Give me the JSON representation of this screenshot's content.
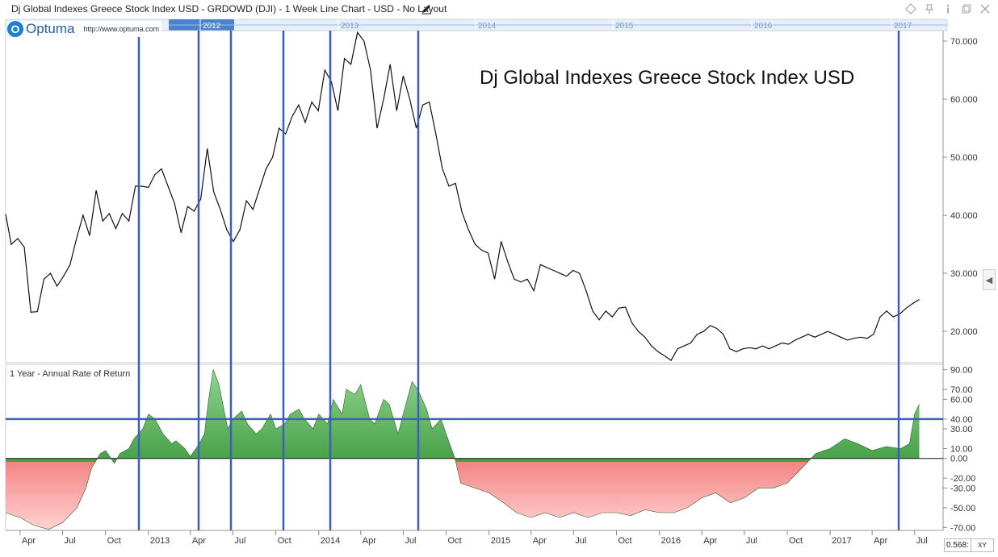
{
  "window": {
    "title": "Dj Global Indexes Greece Stock Index USD - GRDOWD (DJI) - 1 Week Line Chart - USD - No Layout",
    "icons": [
      "diamond-icon",
      "pin-icon",
      "info-icon",
      "restore-icon",
      "close-icon"
    ]
  },
  "logo": {
    "mark": "O",
    "brand": "Optuma",
    "url": "http://www.optuma.com"
  },
  "navigator": {
    "years": [
      "2012",
      "2013",
      "2014",
      "2015",
      "2016",
      "2017"
    ]
  },
  "panel_label": "1 Year - Annual Rate of Return",
  "footer": {
    "zoom": "0.568:",
    "xy_label": "XY"
  },
  "colors": {
    "price_line": "#111111",
    "vline": "#3b5fc0",
    "positive": "#1e8a1e",
    "negative": "#e53030"
  },
  "chart_data": [
    {
      "type": "line",
      "title": "Dj Global Indexes Greece Stock Index USD",
      "x_tick_labels": [
        "Apr",
        "Jul",
        "Oct",
        "2013",
        "Apr",
        "Jul",
        "Oct",
        "2014",
        "Apr",
        "Jul",
        "Oct",
        "2015",
        "Apr",
        "Jul",
        "Oct",
        "2016",
        "Apr",
        "Jul",
        "Oct",
        "2017",
        "Apr",
        "Jul"
      ],
      "y_tick_labels": [
        "20.000",
        "30.000",
        "40.000",
        "50.000",
        "60.000",
        "70.000"
      ],
      "y_ticks": [
        20,
        30,
        40,
        50,
        60,
        70
      ],
      "ylim": [
        14.6,
        71.8
      ],
      "xlim": [
        "2012-03-01",
        "2017-08-31"
      ],
      "grid": false,
      "series": [
        {
          "x": [
            "2012-03-01",
            "2012-03-13",
            "2012-03-27",
            "2012-04-10",
            "2012-04-24",
            "2012-05-08",
            "2012-05-22",
            "2012-06-05",
            "2012-06-19",
            "2012-07-03",
            "2012-07-17",
            "2012-07-31",
            "2012-08-14",
            "2012-08-28",
            "2012-09-11",
            "2012-09-25",
            "2012-10-09",
            "2012-10-23",
            "2012-11-06",
            "2012-11-20",
            "2012-12-04",
            "2012-12-18",
            "2013-01-01",
            "2013-01-15",
            "2013-01-29",
            "2013-02-12",
            "2013-02-26",
            "2013-03-12",
            "2013-03-26",
            "2013-04-09",
            "2013-04-23",
            "2013-05-07",
            "2013-05-21",
            "2013-06-04",
            "2013-06-18",
            "2013-07-02",
            "2013-07-16",
            "2013-07-30",
            "2013-08-13",
            "2013-08-27",
            "2013-09-10",
            "2013-09-24",
            "2013-10-08",
            "2013-10-22",
            "2013-11-05",
            "2013-11-19",
            "2013-12-03",
            "2013-12-17",
            "2013-12-31",
            "2014-01-14",
            "2014-01-28",
            "2014-02-11",
            "2014-02-25",
            "2014-03-11",
            "2014-03-25",
            "2014-04-08",
            "2014-04-22",
            "2014-05-06",
            "2014-05-20",
            "2014-06-03",
            "2014-06-17",
            "2014-07-01",
            "2014-07-15",
            "2014-07-29",
            "2014-08-12",
            "2014-08-26",
            "2014-09-09",
            "2014-09-23",
            "2014-10-07",
            "2014-10-21",
            "2014-11-04",
            "2014-11-18",
            "2014-12-02",
            "2014-12-16",
            "2014-12-30",
            "2015-01-13",
            "2015-01-27",
            "2015-02-10",
            "2015-02-24",
            "2015-03-10",
            "2015-03-24",
            "2015-04-07",
            "2015-04-21",
            "2015-05-05",
            "2015-05-19",
            "2015-06-02",
            "2015-06-16",
            "2015-06-30",
            "2015-07-14",
            "2015-07-28",
            "2015-08-11",
            "2015-08-25",
            "2015-09-08",
            "2015-09-22",
            "2015-10-06",
            "2015-10-20",
            "2015-11-03",
            "2015-11-17",
            "2015-12-01",
            "2015-12-15",
            "2015-12-29",
            "2016-01-12",
            "2016-01-26",
            "2016-02-09",
            "2016-02-23",
            "2016-03-08",
            "2016-03-22",
            "2016-04-05",
            "2016-04-19",
            "2016-05-03",
            "2016-05-17",
            "2016-05-31",
            "2016-06-14",
            "2016-06-28",
            "2016-07-12",
            "2016-07-26",
            "2016-08-09",
            "2016-08-23",
            "2016-09-06",
            "2016-09-20",
            "2016-10-04",
            "2016-10-18",
            "2016-11-01",
            "2016-11-15",
            "2016-11-29",
            "2016-12-13",
            "2016-12-27",
            "2017-01-10",
            "2017-01-24",
            "2017-02-07",
            "2017-02-21",
            "2017-03-07",
            "2017-03-21",
            "2017-04-04",
            "2017-04-18",
            "2017-05-02",
            "2017-05-16",
            "2017-05-30",
            "2017-06-13",
            "2017-06-27",
            "2017-07-11"
          ],
          "y": [
            40.2,
            35.0,
            36.0,
            34.5,
            23.3,
            23.4,
            29.0,
            30.0,
            27.8,
            29.5,
            31.5,
            36.0,
            40.0,
            36.5,
            44.3,
            39.0,
            40.3,
            37.7,
            40.3,
            39.0,
            45.0,
            45.0,
            44.8,
            47.0,
            48.0,
            45.0,
            42.0,
            37.0,
            41.5,
            40.7,
            42.8,
            51.5,
            44.0,
            41.0,
            37.5,
            35.5,
            37.5,
            42.5,
            41.0,
            44.5,
            48.0,
            50.0,
            55.0,
            54.0,
            57.0,
            59.0,
            56.0,
            59.5,
            58.0,
            65.0,
            63.0,
            58.0,
            67.0,
            66.0,
            71.5,
            70.0,
            65.0,
            55.0,
            60.0,
            66.0,
            58.0,
            64.0,
            60.0,
            55.0,
            59.0,
            59.5,
            54.0,
            48.0,
            45.0,
            45.5,
            40.5,
            37.5,
            35.0,
            34.0,
            33.5,
            29.0,
            35.5,
            32.0,
            29.0,
            28.5,
            29.0,
            27.0,
            31.5,
            31.0,
            30.5,
            30.0,
            29.5,
            30.5,
            30.0,
            27.0,
            23.5,
            22.0,
            23.5,
            22.5,
            24.0,
            24.2,
            21.5,
            20.0,
            19.0,
            17.5,
            16.5,
            15.8,
            15.0,
            17.0,
            17.5,
            18.0,
            19.5,
            20.0,
            21.0,
            20.5,
            19.5,
            17.0,
            16.5,
            17.0,
            17.2,
            17.0,
            17.5,
            17.0,
            17.5,
            18.0,
            17.8,
            18.5,
            19.0,
            19.5,
            19.0,
            19.5,
            20.0,
            19.5,
            19.0,
            18.5,
            18.8,
            19.0,
            18.8,
            19.5,
            22.5,
            23.5,
            22.5,
            23.0,
            24.0,
            24.8,
            25.5
          ]
        }
      ]
    },
    {
      "type": "area",
      "title": "1 Year - Annual Rate of Return",
      "y_tick_labels": [
        "-70.00",
        "-50.00",
        "-30.00",
        "-20.00",
        "0.00",
        "10.00",
        "30.00",
        "40.00",
        "60.00",
        "70.00",
        "90.00"
      ],
      "y_ticks": [
        -70,
        -50,
        -30,
        -20,
        0,
        10,
        30,
        40,
        60,
        70,
        90
      ],
      "ylim": [
        -73,
        93
      ],
      "reference_line": 40,
      "grid": false,
      "series": [
        {
          "x": [
            "2012-03-01",
            "2012-04-01",
            "2012-05-01",
            "2012-06-01",
            "2012-07-01",
            "2012-08-01",
            "2012-08-20",
            "2012-09-01",
            "2012-09-20",
            "2012-10-01",
            "2012-10-20",
            "2012-11-01",
            "2012-11-20",
            "2012-12-01",
            "2012-12-20",
            "2013-01-01",
            "2013-01-15",
            "2013-02-01",
            "2013-02-20",
            "2013-03-01",
            "2013-03-20",
            "2013-04-01",
            "2013-04-20",
            "2013-05-01",
            "2013-05-10",
            "2013-05-20",
            "2013-06-01",
            "2013-06-20",
            "2013-07-01",
            "2013-07-20",
            "2013-08-01",
            "2013-08-20",
            "2013-09-01",
            "2013-09-20",
            "2013-10-01",
            "2013-10-20",
            "2013-11-01",
            "2013-11-20",
            "2013-12-01",
            "2013-12-20",
            "2014-01-01",
            "2014-01-20",
            "2014-02-01",
            "2014-02-20",
            "2014-03-01",
            "2014-03-20",
            "2014-04-01",
            "2014-04-20",
            "2014-05-01",
            "2014-05-20",
            "2014-06-01",
            "2014-06-20",
            "2014-07-01",
            "2014-07-20",
            "2014-08-01",
            "2014-08-20",
            "2014-09-01",
            "2014-09-20",
            "2014-10-01",
            "2014-10-20",
            "2014-11-01",
            "2014-12-01",
            "2015-01-01",
            "2015-02-01",
            "2015-03-01",
            "2015-04-01",
            "2015-05-01",
            "2015-06-01",
            "2015-07-01",
            "2015-08-01",
            "2015-09-01",
            "2015-10-01",
            "2015-11-01",
            "2015-12-01",
            "2016-01-01",
            "2016-02-01",
            "2016-03-01",
            "2016-04-01",
            "2016-05-01",
            "2016-06-01",
            "2016-07-01",
            "2016-08-01",
            "2016-09-01",
            "2016-10-01",
            "2016-11-01",
            "2016-12-01",
            "2017-01-01",
            "2017-02-01",
            "2017-03-01",
            "2017-04-01",
            "2017-05-01",
            "2017-06-01",
            "2017-06-20",
            "2017-07-01",
            "2017-07-11"
          ],
          "values": [
            -55,
            -60,
            -68,
            -72,
            -65,
            -50,
            -30,
            -10,
            5,
            8,
            -5,
            5,
            10,
            20,
            30,
            45,
            40,
            25,
            15,
            18,
            10,
            2,
            15,
            25,
            60,
            90,
            75,
            30,
            40,
            48,
            35,
            25,
            30,
            45,
            30,
            35,
            45,
            50,
            40,
            30,
            45,
            35,
            60,
            45,
            70,
            65,
            75,
            40,
            35,
            60,
            55,
            25,
            45,
            78,
            70,
            50,
            30,
            40,
            25,
            0,
            -25,
            -30,
            -35,
            -45,
            -55,
            -60,
            -55,
            -60,
            -55,
            -60,
            -55,
            -55,
            -58,
            -52,
            -55,
            -55,
            -50,
            -40,
            -35,
            -45,
            -40,
            -30,
            -30,
            -25,
            -10,
            5,
            10,
            20,
            15,
            8,
            12,
            10,
            15,
            45,
            55
          ]
        }
      ]
    }
  ]
}
